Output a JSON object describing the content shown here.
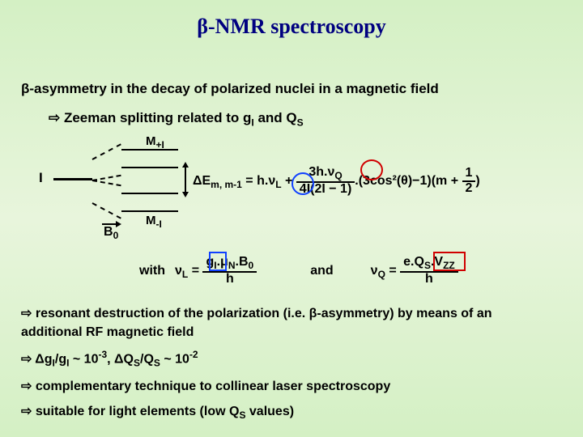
{
  "title_text": "β-NMR spectroscopy",
  "title_color": "#000080",
  "line1_html": "β-asymmetry in the decay of polarized nuclei in a magnetic field",
  "line2_html": "⇨ Zeeman splitting related to g<span class='sub'>I</span> and Q<span class='sub'>S</span>",
  "zeeman": {
    "I_label": "I",
    "M_plus": "M<span class='sub'>+I</span>",
    "M_minus": "M<span class='sub'>-I</span>",
    "B0": "B<span class='sub'>0</span>"
  },
  "formula_main": "ΔE<span class='sub'>m, m-1</span> = h.ν<span class='sub'>L</span> + <span class='frac'><span class='num'>3h.ν<span class='sub'>Q</span></span><span class='den'>4I(2I − 1)</span></span>.(3cos²(θ)−1)(m + <span class='frac'><span class='num'>1</span><span class='den'>2</span></span>)",
  "with_label": "with",
  "nuL_html": "ν<span class='sub'>L</span> = <span class='frac'><span class='num'>g<span class='sub'>I</span>.μ<span class='sub'>N</span>.B<span class='sub'>0</span></span><span class='den'>h</span></span>",
  "and_label": "and",
  "nuQ_html": "ν<span class='sub'>Q</span> = <span class='frac'><span class='num'>e.Q<span class='sub'>S</span>.V<span class='sub'>ZZ</span></span><span class='den'>h</span></span>",
  "bullets": {
    "b1": "⇨ resonant destruction of the polarization (i.e. β-asymmetry) by means of an additional RF magnetic field",
    "b2": "⇨ Δg<span class='sub'>I</span>/g<span class='sub'>I</span> ~ 10<span class='sup'>-3</span>, ΔQ<span class='sub'>S</span>/Q<span class='sub'>S</span> ~ 10<span class='sup'>-2</span>",
    "b3": "⇨ complementary technique to collinear laser spectroscopy",
    "b4": "⇨ suitable for light elements (low Q<span class='sub'>S</span> values)"
  },
  "highlight_colors": {
    "blue": "#1040ff",
    "red": "#d00000"
  }
}
